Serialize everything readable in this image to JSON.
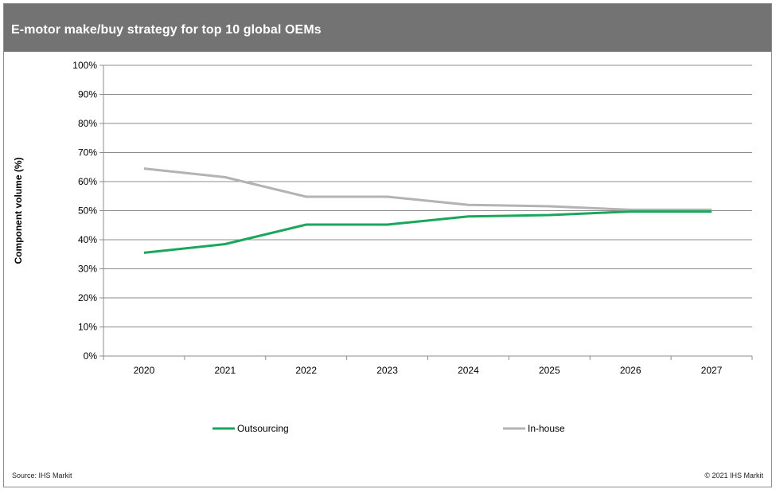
{
  "header": {
    "title": "E-motor make/buy strategy for top 10 global OEMs"
  },
  "footer": {
    "source": "Source: IHS Markit",
    "copyright": "© 2021 IHS Markit"
  },
  "colors": {
    "outsourcing": "#1aa65b",
    "in_house": "#b3b3b3",
    "header_bg": "#737373",
    "grid": "#8c8c8c"
  },
  "chart_data": {
    "type": "line",
    "title": "",
    "xlabel": "",
    "ylabel": "Component volume (%)",
    "x": [
      "2020",
      "2021",
      "2022",
      "2023",
      "2024",
      "2025",
      "2026",
      "2027"
    ],
    "ylim": [
      0,
      100
    ],
    "yticks": [
      "0%",
      "10%",
      "20%",
      "30%",
      "40%",
      "50%",
      "60%",
      "70%",
      "80%",
      "90%",
      "100%"
    ],
    "grid": true,
    "legend_position": "bottom",
    "series": [
      {
        "name": "Outsourcing",
        "color": "#1aa65b",
        "values": [
          35.5,
          38.5,
          45.2,
          45.2,
          48.0,
          48.5,
          49.7,
          49.7
        ]
      },
      {
        "name": "In-house",
        "color": "#b3b3b3",
        "values": [
          64.5,
          61.5,
          54.8,
          54.8,
          52.0,
          51.5,
          50.3,
          50.3
        ]
      }
    ]
  }
}
